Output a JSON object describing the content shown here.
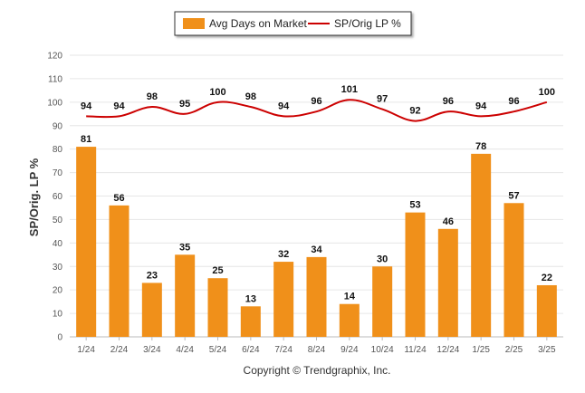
{
  "chart_data": {
    "type": "bar",
    "categories": [
      "1/24",
      "2/24",
      "3/24",
      "4/24",
      "5/24",
      "6/24",
      "7/24",
      "8/24",
      "9/24",
      "10/24",
      "11/24",
      "12/24",
      "1/25",
      "2/25",
      "3/25"
    ],
    "series": [
      {
        "name": "Avg Days on Market",
        "type": "bar",
        "color": "#F0901A",
        "values": [
          81,
          56,
          23,
          35,
          25,
          13,
          32,
          34,
          14,
          30,
          53,
          46,
          78,
          57,
          22
        ]
      },
      {
        "name": "SP/Orig LP %",
        "type": "line",
        "color": "#CC0000",
        "values": [
          94,
          94,
          98,
          95,
          100,
          98,
          94,
          96,
          101,
          97,
          92,
          96,
          94,
          96,
          100
        ]
      }
    ],
    "ylabel": "SP/Orig. LP %",
    "ylim": [
      0,
      120
    ],
    "yticks": [
      0,
      10,
      20,
      30,
      40,
      50,
      60,
      70,
      80,
      90,
      100,
      110,
      120
    ],
    "grid": true,
    "legend": "top-center"
  },
  "footer": {
    "copyright": "Copyright © Trendgraphix, Inc."
  }
}
